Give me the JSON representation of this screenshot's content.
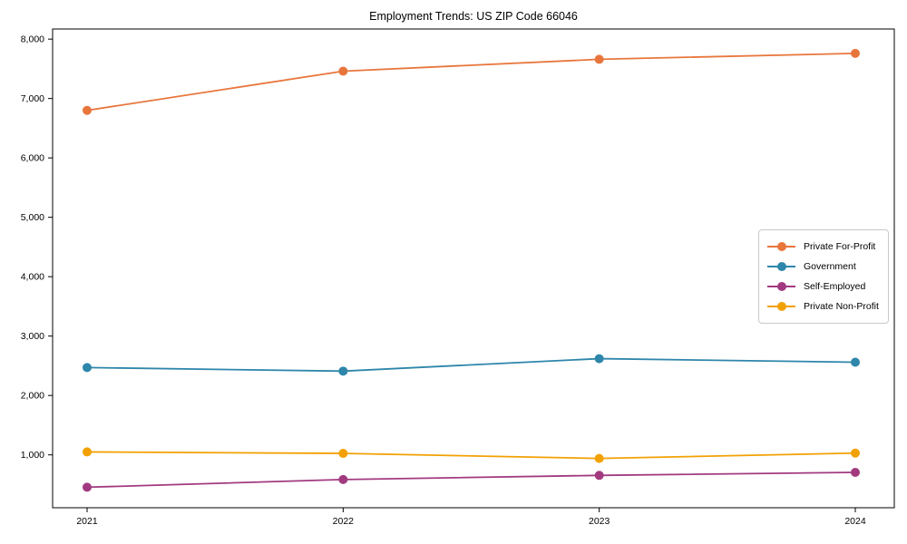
{
  "chart_data": {
    "type": "line",
    "title": "Employment Trends: US ZIP Code 66046",
    "xlabel": "",
    "ylabel": "",
    "x": [
      "2021",
      "2022",
      "2023",
      "2024"
    ],
    "ylim": [
      110,
      8170
    ],
    "yticks": [
      1000,
      2000,
      3000,
      4000,
      5000,
      6000,
      7000,
      8000
    ],
    "ytick_labels": [
      "1,000",
      "2,000",
      "3,000",
      "4,000",
      "5,000",
      "6,000",
      "7,000",
      "8,000"
    ],
    "grid": false,
    "legend_position": "center-right",
    "marker": "circle",
    "series": [
      {
        "name": "Private For-Profit",
        "color": "#E8763C",
        "values": [
          6800,
          7460,
          7660,
          7760
        ]
      },
      {
        "name": "Government",
        "color": "#2E86AB",
        "values": [
          2470,
          2410,
          2620,
          2560
        ]
      },
      {
        "name": "Self-Employed",
        "color": "#A23A80",
        "values": [
          455,
          585,
          655,
          705
        ]
      },
      {
        "name": "Private Non-Profit",
        "color": "#F2A104",
        "values": [
          1050,
          1025,
          940,
          1030
        ]
      }
    ]
  }
}
